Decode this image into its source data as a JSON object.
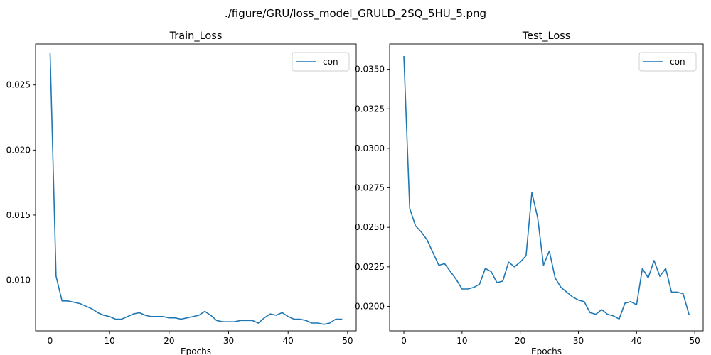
{
  "figure": {
    "suptitle": "./figure/GRU/loss_model_GRULD_2SQ_5HU_5.png"
  },
  "chart_data": [
    {
      "type": "line",
      "title": "Train_Loss",
      "xlabel": "Epochs",
      "ylabel": "",
      "xlim": [
        -2.45,
        51.45
      ],
      "ylim": [
        0.0061,
        0.02815
      ],
      "xticks": [
        0,
        10,
        20,
        30,
        40,
        50
      ],
      "yticks": [
        0.01,
        0.015,
        0.02,
        0.025
      ],
      "ytick_labels": [
        "0.010",
        "0.015",
        "0.020",
        "0.025"
      ],
      "grid": false,
      "legend": "top-right",
      "series": [
        {
          "name": "con",
          "color": "#1f77b4",
          "x": [
            0,
            1,
            2,
            3,
            4,
            5,
            6,
            7,
            8,
            9,
            10,
            11,
            12,
            13,
            14,
            15,
            16,
            17,
            18,
            19,
            20,
            21,
            22,
            23,
            24,
            25,
            26,
            27,
            28,
            29,
            30,
            31,
            32,
            33,
            34,
            35,
            36,
            37,
            38,
            39,
            40,
            41,
            42,
            43,
            44,
            45,
            46,
            47,
            48,
            49
          ],
          "values": [
            0.0274,
            0.0103,
            0.0084,
            0.0084,
            0.0083,
            0.0082,
            0.008,
            0.0078,
            0.0075,
            0.0073,
            0.0072,
            0.007,
            0.007,
            0.0072,
            0.0074,
            0.0075,
            0.0073,
            0.0072,
            0.0072,
            0.0072,
            0.0071,
            0.0071,
            0.007,
            0.0071,
            0.0072,
            0.0073,
            0.0076,
            0.0073,
            0.0069,
            0.0068,
            0.0068,
            0.0068,
            0.0069,
            0.0069,
            0.0069,
            0.0067,
            0.0071,
            0.0074,
            0.0073,
            0.0075,
            0.0072,
            0.007,
            0.007,
            0.0069,
            0.0067,
            0.0067,
            0.0066,
            0.0067,
            0.007,
            0.007
          ]
        }
      ]
    },
    {
      "type": "line",
      "title": "Test_Loss",
      "xlabel": "Epochs",
      "ylabel": "",
      "xlim": [
        -2.45,
        51.45
      ],
      "ylim": [
        0.01845,
        0.0366
      ],
      "xticks": [
        0,
        10,
        20,
        30,
        40,
        50
      ],
      "yticks": [
        0.02,
        0.0225,
        0.025,
        0.0275,
        0.03,
        0.0325,
        0.035
      ],
      "ytick_labels": [
        "0.0200",
        "0.0225",
        "0.0250",
        "0.0275",
        "0.0300",
        "0.0325",
        "0.0350"
      ],
      "grid": false,
      "legend": "top-right",
      "series": [
        {
          "name": "con",
          "color": "#1f77b4",
          "x": [
            0,
            1,
            2,
            3,
            4,
            5,
            6,
            7,
            8,
            9,
            10,
            11,
            12,
            13,
            14,
            15,
            16,
            17,
            18,
            19,
            20,
            21,
            22,
            23,
            24,
            25,
            26,
            27,
            28,
            29,
            30,
            31,
            32,
            33,
            34,
            35,
            36,
            37,
            38,
            39,
            40,
            41,
            42,
            43,
            44,
            45,
            46,
            47,
            48,
            49
          ],
          "values": [
            0.0358,
            0.0262,
            0.0251,
            0.0247,
            0.0242,
            0.0234,
            0.0226,
            0.0227,
            0.0222,
            0.0217,
            0.0211,
            0.0211,
            0.0212,
            0.0214,
            0.0224,
            0.0222,
            0.0215,
            0.0216,
            0.0228,
            0.0225,
            0.0228,
            0.0232,
            0.0272,
            0.0256,
            0.0226,
            0.0235,
            0.0218,
            0.0212,
            0.0209,
            0.0206,
            0.0204,
            0.0203,
            0.0196,
            0.0195,
            0.0198,
            0.0195,
            0.0194,
            0.0192,
            0.0202,
            0.0203,
            0.0201,
            0.0224,
            0.0218,
            0.0229,
            0.0219,
            0.0224,
            0.0209,
            0.0209,
            0.0208,
            0.0195
          ]
        }
      ]
    }
  ]
}
